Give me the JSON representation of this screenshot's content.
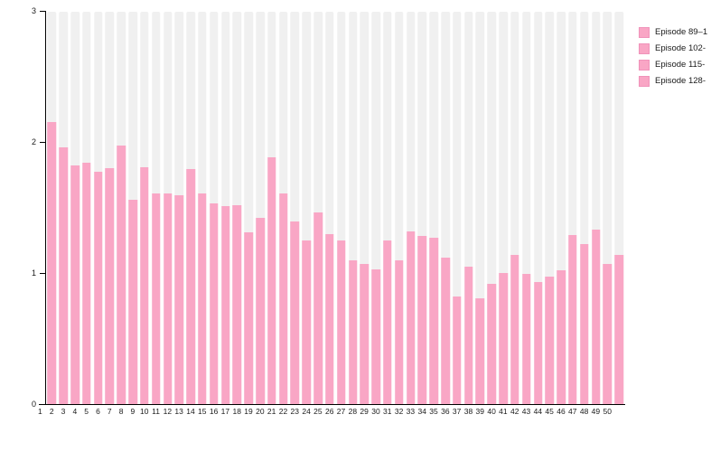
{
  "chart_data": {
    "type": "bar",
    "title": "",
    "xlabel": "",
    "ylabel": "",
    "ylim": [
      0,
      3
    ],
    "yticks": [
      0,
      1,
      2,
      3
    ],
    "grid": false,
    "legend_position": "top-right",
    "bar_color": "#f9a6c5",
    "track_color": "#f0f0f0",
    "axis_color": "#000000",
    "categories": [
      "1",
      "2",
      "3",
      "4",
      "5",
      "6",
      "7",
      "8",
      "9",
      "10",
      "11",
      "12",
      "13",
      "14",
      "15",
      "16",
      "17",
      "18",
      "19",
      "20",
      "21",
      "22",
      "23",
      "24",
      "25",
      "26",
      "27",
      "28",
      "29",
      "30",
      "31",
      "32",
      "33",
      "34",
      "35",
      "36",
      "37",
      "38",
      "39",
      "40",
      "41",
      "42",
      "43",
      "44",
      "45",
      "46",
      "47",
      "48",
      "49",
      "50"
    ],
    "values": [
      2.15,
      1.96,
      1.82,
      1.84,
      1.77,
      1.8,
      1.97,
      1.56,
      1.81,
      1.61,
      1.61,
      1.59,
      1.79,
      1.61,
      1.53,
      1.51,
      1.52,
      1.31,
      1.42,
      1.88,
      1.61,
      1.39,
      1.25,
      1.46,
      1.3,
      1.25,
      1.1,
      1.07,
      1.03,
      1.25,
      1.1,
      1.32,
      1.28,
      1.27,
      1.12,
      0.82,
      1.05,
      0.81,
      0.92,
      1.0,
      1.14,
      0.99,
      0.93,
      0.97,
      1.02,
      1.29,
      1.22,
      1.33,
      1.07,
      1.14
    ],
    "legend": [
      {
        "label": "Episode 89–1",
        "color": "#f9a6c5"
      },
      {
        "label": "Episode 102-",
        "color": "#f9a6c5"
      },
      {
        "label": "Episode 115-",
        "color": "#f9a6c5"
      },
      {
        "label": "Episode 128-",
        "color": "#f9a6c5"
      }
    ]
  }
}
